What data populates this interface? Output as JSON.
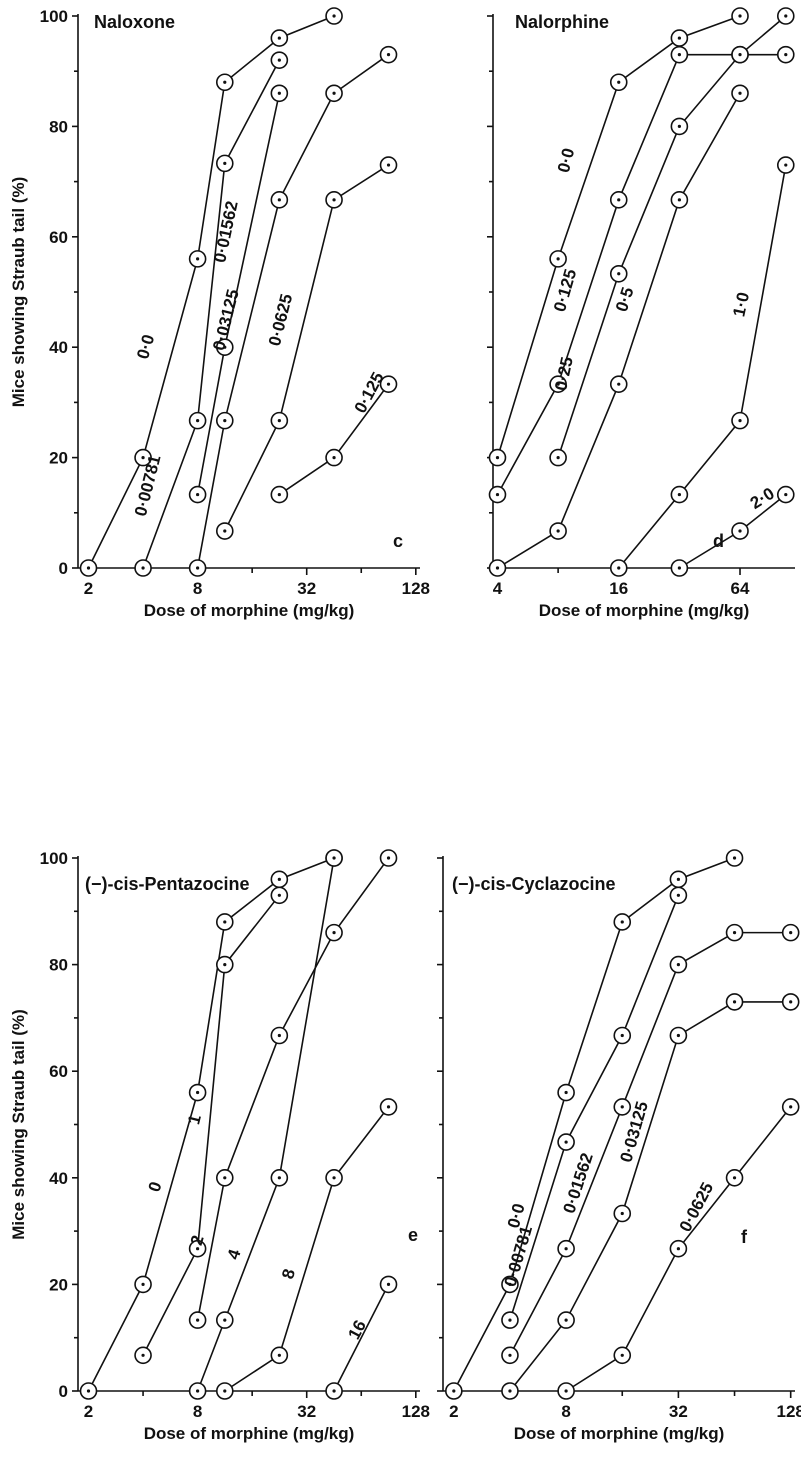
{
  "chart_data": [
    {
      "id": "c",
      "type": "line",
      "panel_title": "Naloxone",
      "panel_letter": "c",
      "xlabel": "Dose of morphine (mg/kg)",
      "ylabel": "Mice showing Straub tail (%)",
      "x_scale": "log2",
      "xlim": [
        1.75,
        135
      ],
      "ylim": [
        0,
        100
      ],
      "x_ticks": [
        2,
        8,
        32,
        128
      ],
      "x_tick_labels": [
        "2",
        "8",
        "32",
        "128"
      ],
      "y_ticks": [
        0,
        20,
        40,
        60,
        80,
        100
      ],
      "y_tick_labels": [
        "0",
        "20",
        "40",
        "60",
        "80",
        "100"
      ],
      "series": [
        {
          "name": "0·0",
          "x": [
            2,
            4,
            8,
            11.3,
            22.6,
            45.3
          ],
          "y": [
            0,
            20,
            56,
            88,
            96,
            100
          ]
        },
        {
          "name": "0·00781",
          "x": [
            4,
            8,
            11.3,
            22.6
          ],
          "y": [
            0,
            26.7,
            73.3,
            92
          ]
        },
        {
          "name": "0·01562",
          "x": [
            8,
            11.3,
            22.6
          ],
          "y": [
            13.3,
            40,
            86
          ]
        },
        {
          "name": "0·03125",
          "x": [
            8,
            11.3,
            22.6,
            45.3,
            90.5
          ],
          "y": [
            0,
            26.7,
            66.7,
            86,
            93
          ]
        },
        {
          "name": "0·0625",
          "x": [
            11.3,
            22.6,
            45.3,
            90.5
          ],
          "y": [
            6.7,
            26.7,
            66.7,
            73
          ]
        },
        {
          "name": "0·125",
          "x": [
            22.6,
            45.3,
            90.5
          ],
          "y": [
            13.3,
            20,
            33.3
          ]
        }
      ]
    },
    {
      "id": "d",
      "type": "line",
      "panel_title": "Nalorphine",
      "panel_letter": "d",
      "xlabel": "Dose of morphine (mg/kg)",
      "ylabel": "",
      "x_scale": "log2",
      "xlim": [
        3.8,
        120
      ],
      "ylim": [
        0,
        100
      ],
      "x_ticks": [
        4,
        16,
        64
      ],
      "x_tick_labels": [
        "4",
        "16",
        "64"
      ],
      "y_ticks": [
        0,
        20,
        40,
        60,
        80,
        100
      ],
      "y_tick_labels": [],
      "series": [
        {
          "name": "0·0",
          "x": [
            4,
            8,
            16,
            32,
            64
          ],
          "y": [
            20,
            56,
            88,
            96,
            100
          ]
        },
        {
          "name": "0·125",
          "x": [
            4,
            8,
            16,
            32,
            64,
            108
          ],
          "y": [
            13.3,
            33.3,
            66.7,
            93,
            93,
            93
          ]
        },
        {
          "name": "0·25",
          "x": [
            8,
            16,
            32,
            64,
            108
          ],
          "y": [
            20,
            53.3,
            80,
            93,
            100
          ]
        },
        {
          "name": "0·5",
          "x": [
            4,
            8,
            16,
            32,
            64
          ],
          "y": [
            0,
            6.7,
            33.3,
            66.7,
            86
          ]
        },
        {
          "name": "1·0",
          "x": [
            16,
            32,
            64,
            108
          ],
          "y": [
            0,
            13.3,
            26.7,
            73
          ]
        },
        {
          "name": "2·0",
          "x": [
            32,
            64,
            108
          ],
          "y": [
            0,
            6.7,
            13.3
          ]
        }
      ]
    },
    {
      "id": "e",
      "type": "line",
      "panel_title": "(−)-cis-Pentazocine",
      "panel_letter": "e",
      "xlabel": "Dose of morphine (mg/kg)",
      "ylabel": "Mice showing Straub tail (%)",
      "x_scale": "log2",
      "xlim": [
        1.75,
        135
      ],
      "ylim": [
        0,
        100
      ],
      "x_ticks": [
        2,
        8,
        32,
        128
      ],
      "x_tick_labels": [
        "2",
        "8",
        "32",
        "128"
      ],
      "y_ticks": [
        0,
        20,
        40,
        60,
        80,
        100
      ],
      "y_tick_labels": [
        "0",
        "20",
        "40",
        "60",
        "80",
        "100"
      ],
      "series": [
        {
          "name": "0",
          "x": [
            2,
            4,
            8,
            11.3,
            22.6,
            45.3
          ],
          "y": [
            0,
            20,
            56,
            88,
            96,
            100
          ]
        },
        {
          "name": "1",
          "x": [
            4,
            8,
            11.3,
            22.6
          ],
          "y": [
            6.7,
            26.7,
            80,
            93
          ]
        },
        {
          "name": "2",
          "x": [
            8,
            11.3,
            22.6,
            45.3,
            90.5
          ],
          "y": [
            13.3,
            40,
            66.7,
            86,
            100
          ]
        },
        {
          "name": "4",
          "x": [
            8,
            11.3,
            22.6,
            45.3
          ],
          "y": [
            0,
            13.3,
            40,
            100
          ]
        },
        {
          "name": "8",
          "x": [
            11.3,
            22.6,
            45.3,
            90.5
          ],
          "y": [
            0,
            6.7,
            40,
            53.3
          ]
        },
        {
          "name": "16",
          "x": [
            45.3,
            90.5
          ],
          "y": [
            0,
            20
          ]
        }
      ]
    },
    {
      "id": "f",
      "type": "line",
      "panel_title": "(−)-cis-Cyclazocine",
      "panel_letter": "f",
      "xlabel": "Dose of morphine (mg/kg)",
      "ylabel": "",
      "x_scale": "log2",
      "xlim": [
        1.75,
        135
      ],
      "ylim": [
        0,
        100
      ],
      "x_ticks": [
        2,
        8,
        32,
        128
      ],
      "x_tick_labels": [
        "2",
        "8",
        "32",
        "128"
      ],
      "y_ticks": [
        0,
        20,
        40,
        60,
        80,
        100
      ],
      "y_tick_labels": [],
      "series": [
        {
          "name": "0·0",
          "x": [
            2,
            4,
            8,
            16,
            32,
            64
          ],
          "y": [
            0,
            20,
            56,
            88,
            96,
            100
          ]
        },
        {
          "name": "0·00781",
          "x": [
            4,
            8,
            16,
            32
          ],
          "y": [
            13.3,
            46.7,
            66.7,
            93
          ]
        },
        {
          "name": "0·01562",
          "x": [
            4,
            8,
            16,
            32,
            64,
            128
          ],
          "y": [
            6.7,
            26.7,
            53.3,
            80,
            86,
            86
          ]
        },
        {
          "name": "0·03125",
          "x": [
            4,
            8,
            16,
            32,
            64,
            128
          ],
          "y": [
            0,
            13.3,
            33.3,
            66.7,
            73,
            73
          ]
        },
        {
          "name": "0·0625",
          "x": [
            8,
            16,
            32,
            64,
            128
          ],
          "y": [
            0,
            6.7,
            26.7,
            40,
            53.3
          ]
        }
      ]
    }
  ]
}
